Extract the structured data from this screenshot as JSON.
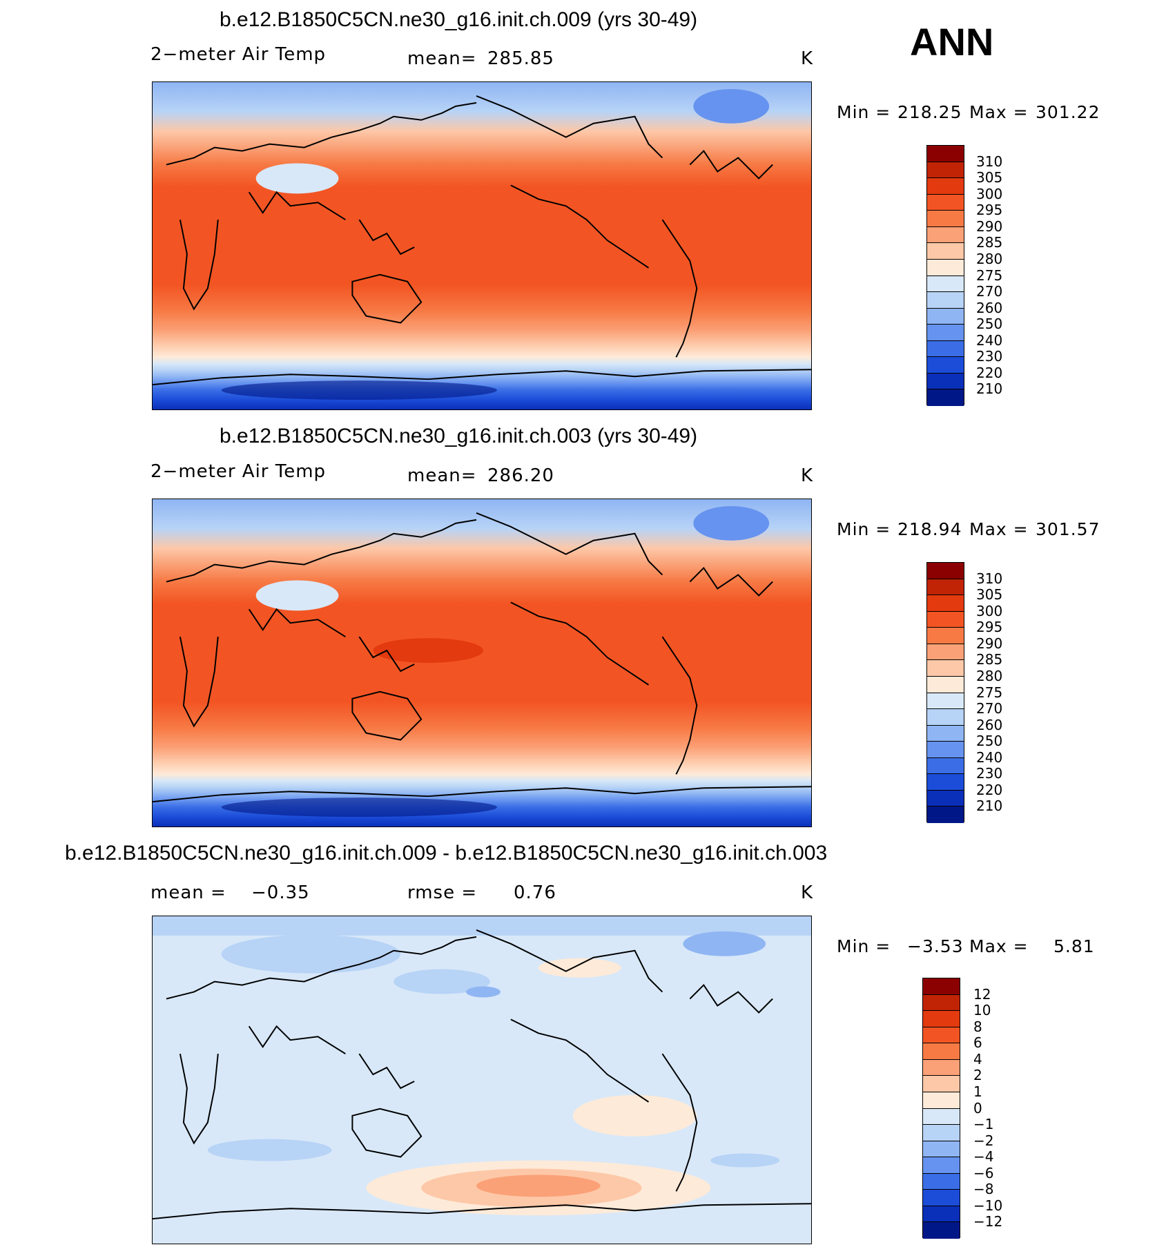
{
  "season": "ANN",
  "chart_data": [
    {
      "type": "heatmap",
      "title": "b.e12.B1850C5CN.ne30_g16.init.ch.009 (yrs 30-49)",
      "variable": "2−meter Air Temp",
      "mean_label": "mean=",
      "mean": "285.85",
      "units": "K",
      "min_label": "Min  =",
      "min": "218.25",
      "max_label": "Max  =",
      "max": "301.22",
      "colorbar_levels": [
        "310",
        "305",
        "300",
        "295",
        "290",
        "285",
        "280",
        "275",
        "270",
        "260",
        "250",
        "240",
        "230",
        "220",
        "210"
      ],
      "colorbar_colors": [
        "#8b0000",
        "#c02405",
        "#e33a0f",
        "#f25523",
        "#f77a45",
        "#fba177",
        "#fdc8a8",
        "#feead8",
        "#d8e8f8",
        "#b7d3f6",
        "#8fb5f3",
        "#6693ef",
        "#3b6ee6",
        "#1b4dd9",
        "#0a2fb9",
        "#001787"
      ]
    },
    {
      "type": "heatmap",
      "title": "b.e12.B1850C5CN.ne30_g16.init.ch.003 (yrs 30-49)",
      "variable": "2−meter Air Temp",
      "mean_label": "mean=",
      "mean": "286.20",
      "units": "K",
      "min_label": "Min  =",
      "min": "218.94",
      "max_label": "Max  =",
      "max": "301.57",
      "colorbar_levels": [
        "310",
        "305",
        "300",
        "295",
        "290",
        "285",
        "280",
        "275",
        "270",
        "260",
        "250",
        "240",
        "230",
        "220",
        "210"
      ],
      "colorbar_colors": [
        "#8b0000",
        "#c02405",
        "#e33a0f",
        "#f25523",
        "#f77a45",
        "#fba177",
        "#fdc8a8",
        "#feead8",
        "#d8e8f8",
        "#b7d3f6",
        "#8fb5f3",
        "#6693ef",
        "#3b6ee6",
        "#1b4dd9",
        "#0a2fb9",
        "#001787"
      ]
    },
    {
      "type": "heatmap",
      "title": "b.e12.B1850C5CN.ne30_g16.init.ch.009 - b.e12.B1850C5CN.ne30_g16.init.ch.003",
      "mean_label": "mean =",
      "mean": "−0.35",
      "rmse_label": "rmse =",
      "rmse": "0.76",
      "units": "K",
      "min_label": "Min  =",
      "min": "−3.53",
      "max_label": "Max  =",
      "max": "5.81",
      "colorbar_levels": [
        "12",
        "10",
        "8",
        "6",
        "4",
        "2",
        "1",
        "0",
        "−1",
        "−2",
        "−4",
        "−6",
        "−8",
        "−10",
        "−12"
      ],
      "colorbar_colors": [
        "#8b0000",
        "#c02405",
        "#e33a0f",
        "#f25523",
        "#f77a45",
        "#fba177",
        "#fdc8a8",
        "#feead8",
        "#d8e8f8",
        "#b7d3f6",
        "#8fb5f3",
        "#6693ef",
        "#3b6ee6",
        "#1b4dd9",
        "#0a2fb9",
        "#001787"
      ]
    }
  ]
}
